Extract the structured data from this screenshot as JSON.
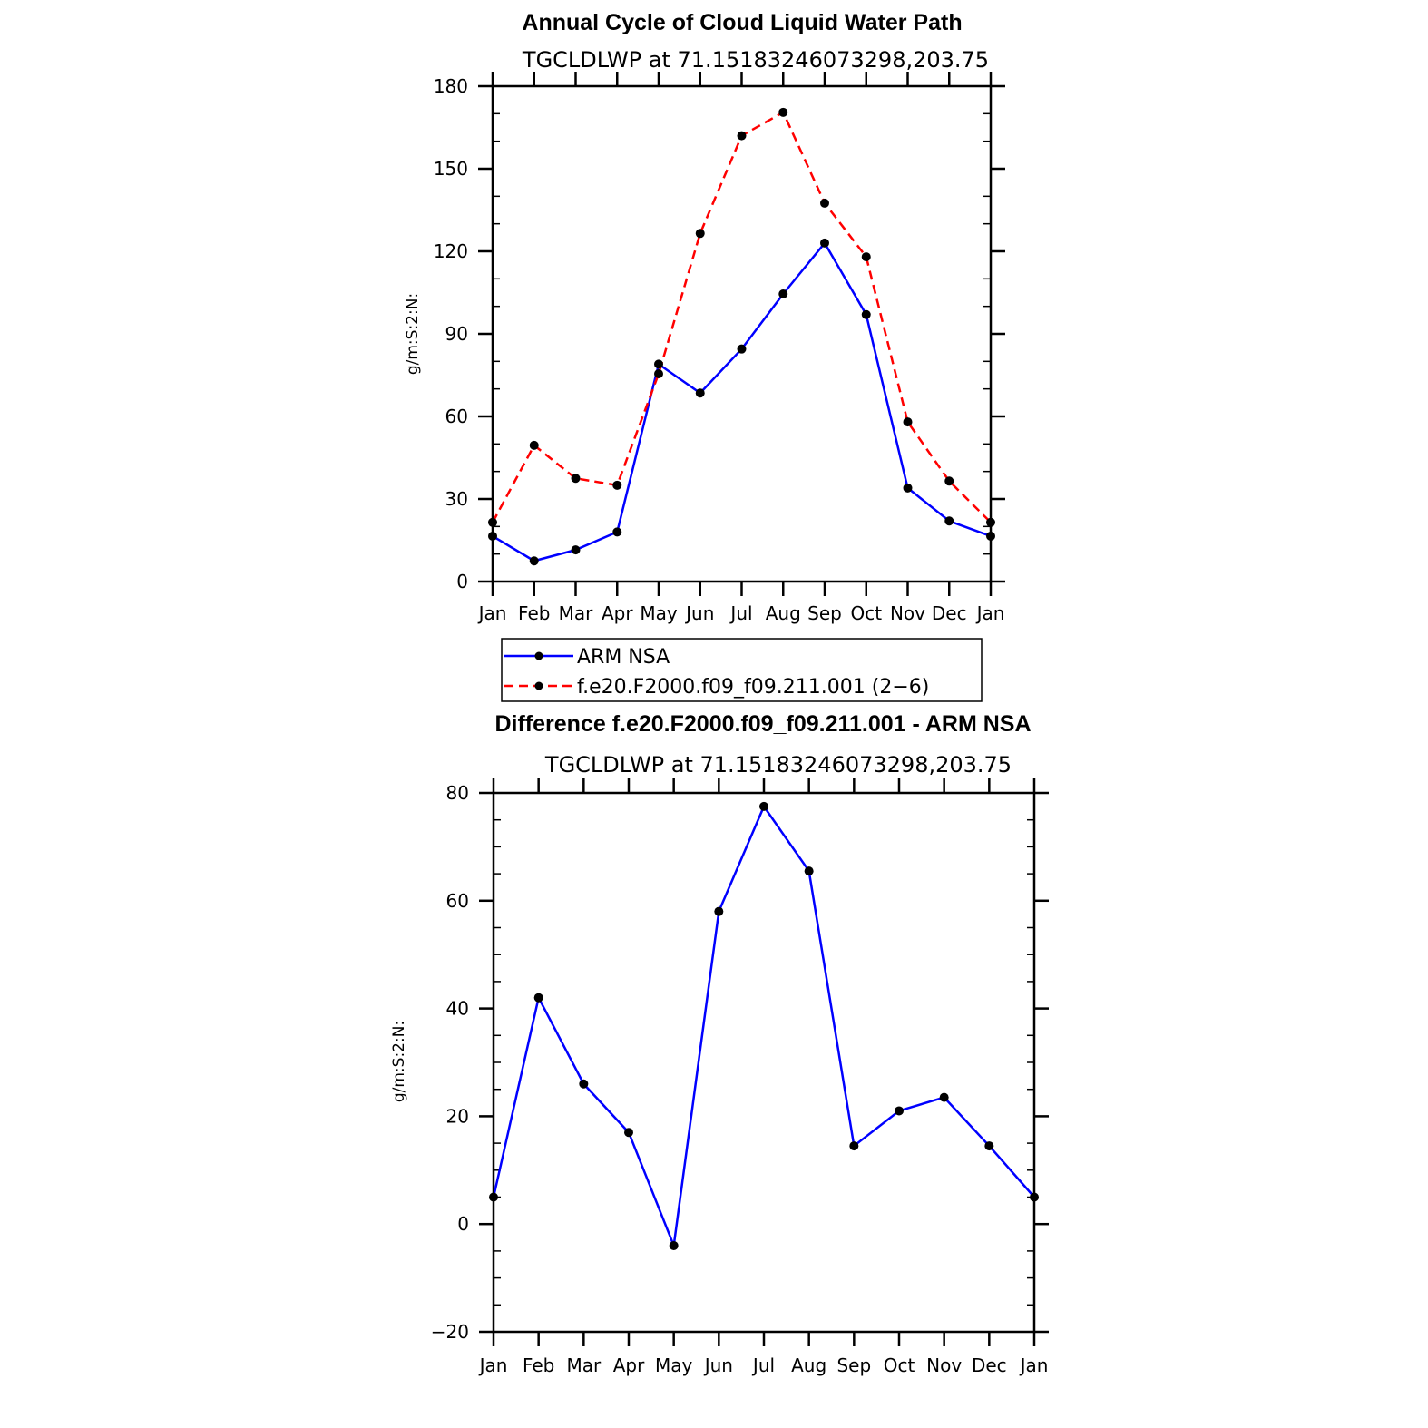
{
  "colors": {
    "series_blue": "#0000ff",
    "series_red": "#ff0000",
    "marker": "#000000",
    "axis": "#000000"
  },
  "legend": {
    "entries": [
      "ARM NSA",
      "f.e20.F2000.f09_f09.211.001 (2−6)"
    ]
  },
  "chart_data": [
    {
      "type": "line",
      "title": "Annual Cycle of Cloud Liquid Water Path",
      "subtitle": "TGCLDLWP  at  71.15183246073298,203.75",
      "xlabel": "",
      "ylabel": "g/m:S:2:N:",
      "categories": [
        "Jan",
        "Feb",
        "Mar",
        "Apr",
        "May",
        "Jun",
        "Jul",
        "Aug",
        "Sep",
        "Oct",
        "Nov",
        "Dec",
        "Jan"
      ],
      "ylim": [
        0,
        180
      ],
      "yticks": [
        0,
        30,
        60,
        90,
        120,
        150,
        180
      ],
      "y_minor_step": 10,
      "series": [
        {
          "name": "ARM NSA",
          "style": "solid",
          "color": "#0000ff",
          "values": [
            16.5,
            7.5,
            11.5,
            18,
            79,
            68.5,
            84.5,
            104.5,
            123,
            97,
            34,
            22,
            16.5
          ]
        },
        {
          "name": "f.e20.F2000.f09_f09.211.001 (2−6)",
          "style": "dashed",
          "color": "#ff0000",
          "values": [
            21.5,
            49.5,
            37.5,
            35,
            75.5,
            126.5,
            162,
            170.5,
            137.5,
            118,
            58,
            36.5,
            21.5
          ]
        }
      ]
    },
    {
      "type": "line",
      "title": "Difference f.e20.F2000.f09_f09.211.001 - ARM NSA",
      "subtitle": "TGCLDLWP  at  71.15183246073298,203.75",
      "xlabel": "",
      "ylabel": "g/m:S:2:N:",
      "categories": [
        "Jan",
        "Feb",
        "Mar",
        "Apr",
        "May",
        "Jun",
        "Jul",
        "Aug",
        "Sep",
        "Oct",
        "Nov",
        "Dec",
        "Jan"
      ],
      "ylim": [
        -20,
        80
      ],
      "yticks": [
        -20,
        0,
        20,
        40,
        60,
        80
      ],
      "ytick_labels": [
        "−20",
        "0",
        "20",
        "40",
        "60",
        "80"
      ],
      "y_minor_step": 5,
      "series": [
        {
          "name": "difference",
          "style": "solid",
          "color": "#0000ff",
          "values": [
            5,
            42,
            26,
            17,
            -4,
            58,
            77.5,
            65.5,
            14.5,
            21,
            23.5,
            14.5,
            5
          ]
        }
      ]
    }
  ]
}
